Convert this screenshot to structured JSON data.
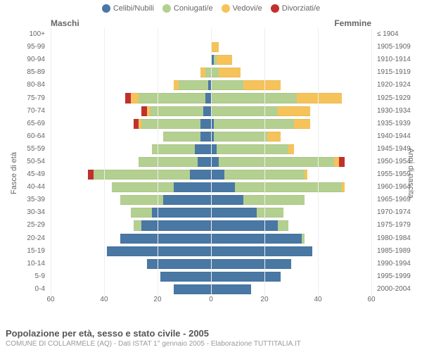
{
  "legend": [
    {
      "label": "Celibi/Nubili",
      "color": "#4a78a4"
    },
    {
      "label": "Coniugati/e",
      "color": "#b4d090"
    },
    {
      "label": "Vedovi/e",
      "color": "#f6c35a"
    },
    {
      "label": "Divorziati/e",
      "color": "#c22f2f"
    }
  ],
  "gender_labels": {
    "male": "Maschi",
    "female": "Femmine"
  },
  "axis": {
    "left_title": "Fasce di età",
    "right_title": "Anni di nascita",
    "x_ticks": [
      60,
      40,
      20,
      0,
      20,
      40,
      60
    ],
    "x_max": 60
  },
  "footer": {
    "title": "Popolazione per età, sesso e stato civile - 2005",
    "sub": "COMUNE DI COLLARMELE (AQ) - Dati ISTAT 1° gennaio 2005 - Elaborazione TUTTITALIA.IT"
  },
  "rows": [
    {
      "age": "100+",
      "birth": "≤ 1904",
      "m": [
        0,
        0,
        0,
        0
      ],
      "f": [
        0,
        0,
        0,
        0
      ]
    },
    {
      "age": "95-99",
      "birth": "1905-1909",
      "m": [
        0,
        0,
        0,
        0
      ],
      "f": [
        0,
        0,
        3,
        0
      ]
    },
    {
      "age": "90-94",
      "birth": "1910-1914",
      "m": [
        0,
        0,
        0,
        0
      ],
      "f": [
        1,
        1,
        6,
        0
      ]
    },
    {
      "age": "85-89",
      "birth": "1915-1919",
      "m": [
        0,
        2,
        2,
        0
      ],
      "f": [
        0,
        3,
        8,
        0
      ]
    },
    {
      "age": "80-84",
      "birth": "1920-1924",
      "m": [
        1,
        11,
        2,
        0
      ],
      "f": [
        0,
        12,
        14,
        0
      ]
    },
    {
      "age": "75-79",
      "birth": "1925-1929",
      "m": [
        2,
        25,
        3,
        2
      ],
      "f": [
        0,
        32,
        17,
        0
      ]
    },
    {
      "age": "70-74",
      "birth": "1930-1934",
      "m": [
        3,
        20,
        1,
        2
      ],
      "f": [
        0,
        25,
        12,
        0
      ]
    },
    {
      "age": "65-69",
      "birth": "1935-1939",
      "m": [
        4,
        22,
        1,
        2
      ],
      "f": [
        1,
        30,
        6,
        0
      ]
    },
    {
      "age": "60-64",
      "birth": "1940-1944",
      "m": [
        4,
        14,
        0,
        0
      ],
      "f": [
        1,
        20,
        5,
        0
      ]
    },
    {
      "age": "55-59",
      "birth": "1945-1949",
      "m": [
        6,
        16,
        0,
        0
      ],
      "f": [
        2,
        27,
        2,
        0
      ]
    },
    {
      "age": "50-54",
      "birth": "1950-1954",
      "m": [
        5,
        22,
        0,
        0
      ],
      "f": [
        3,
        43,
        2,
        2
      ]
    },
    {
      "age": "45-49",
      "birth": "1955-1959",
      "m": [
        8,
        36,
        0,
        2
      ],
      "f": [
        5,
        30,
        1,
        0
      ]
    },
    {
      "age": "40-44",
      "birth": "1960-1964",
      "m": [
        14,
        23,
        0,
        0
      ],
      "f": [
        9,
        40,
        1,
        0
      ]
    },
    {
      "age": "35-39",
      "birth": "1965-1969",
      "m": [
        18,
        16,
        0,
        0
      ],
      "f": [
        12,
        23,
        0,
        0
      ]
    },
    {
      "age": "30-34",
      "birth": "1970-1974",
      "m": [
        22,
        8,
        0,
        0
      ],
      "f": [
        17,
        10,
        0,
        0
      ]
    },
    {
      "age": "25-29",
      "birth": "1975-1979",
      "m": [
        26,
        3,
        0,
        0
      ],
      "f": [
        25,
        4,
        0,
        0
      ]
    },
    {
      "age": "20-24",
      "birth": "1980-1984",
      "m": [
        34,
        0,
        0,
        0
      ],
      "f": [
        34,
        1,
        0,
        0
      ]
    },
    {
      "age": "15-19",
      "birth": "1985-1989",
      "m": [
        39,
        0,
        0,
        0
      ],
      "f": [
        38,
        0,
        0,
        0
      ]
    },
    {
      "age": "10-14",
      "birth": "1990-1994",
      "m": [
        24,
        0,
        0,
        0
      ],
      "f": [
        30,
        0,
        0,
        0
      ]
    },
    {
      "age": "5-9",
      "birth": "1995-1999",
      "m": [
        19,
        0,
        0,
        0
      ],
      "f": [
        26,
        0,
        0,
        0
      ]
    },
    {
      "age": "0-4",
      "birth": "2000-2004",
      "m": [
        14,
        0,
        0,
        0
      ],
      "f": [
        15,
        0,
        0,
        0
      ]
    }
  ],
  "series_colors": [
    "#4a78a4",
    "#b4d090",
    "#f6c35a",
    "#c22f2f"
  ]
}
